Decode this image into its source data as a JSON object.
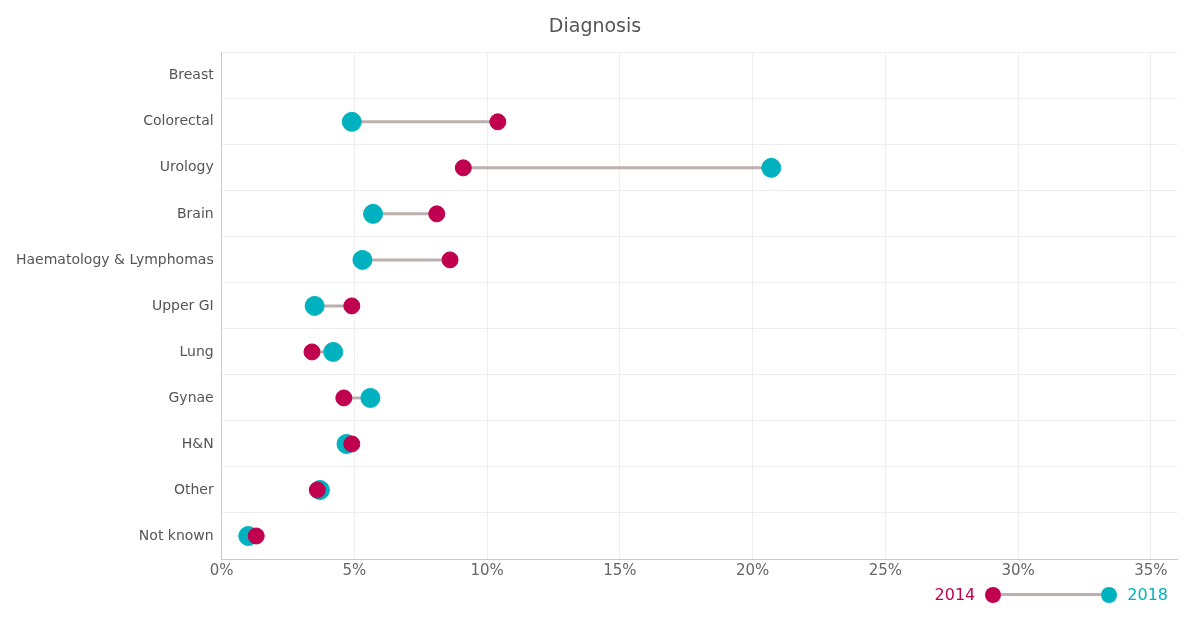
{
  "chart_data": {
    "type": "scatter",
    "title": "Diagnosis",
    "orientation": "horizontal",
    "categories": [
      "Breast",
      "Colorectal",
      "Urology",
      "Brain",
      "Haematology & Lymphomas",
      "Upper GI",
      "Lung",
      "Gynae",
      "H&N",
      "Other",
      "Not known"
    ],
    "series": [
      {
        "name": "2014",
        "color": "#c0004e",
        "values": [
          null,
          10.4,
          9.1,
          8.1,
          8.6,
          4.9,
          3.4,
          4.6,
          4.9,
          3.6,
          1.3
        ]
      },
      {
        "name": "2018",
        "color": "#00b2c0",
        "values": [
          null,
          4.9,
          20.7,
          5.7,
          5.3,
          3.5,
          4.2,
          5.6,
          4.7,
          3.7,
          1.0
        ]
      }
    ],
    "xlim": [
      0,
      36
    ],
    "xticks": [
      {
        "value": 0,
        "label": "0%"
      },
      {
        "value": 5,
        "label": "5%"
      },
      {
        "value": 10,
        "label": "10%"
      },
      {
        "value": 15,
        "label": "15%"
      },
      {
        "value": 20,
        "label": "20%"
      },
      {
        "value": 25,
        "label": "25%"
      },
      {
        "value": 30,
        "label": "30%"
      },
      {
        "value": 35,
        "label": "35%"
      }
    ],
    "grid": true,
    "legend": "bottom right",
    "marker": "circle"
  }
}
